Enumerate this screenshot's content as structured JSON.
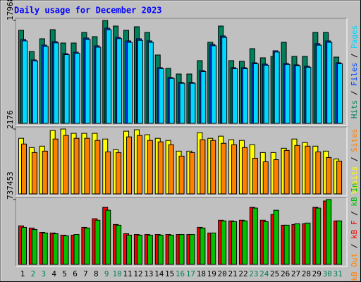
{
  "title": "Daily usage for December 2023",
  "days": [
    "1",
    "2",
    "3",
    "4",
    "5",
    "6",
    "7",
    "8",
    "9",
    "10",
    "11",
    "12",
    "13",
    "14",
    "15",
    "16",
    "17",
    "18",
    "19",
    "20",
    "21",
    "22",
    "23",
    "24",
    "25",
    "26",
    "27",
    "28",
    "29",
    "30",
    "31"
  ],
  "weekend_color": "#00805C",
  "weekday_color": "#000000",
  "weekends": [
    2,
    3,
    9,
    10,
    16,
    17,
    23,
    24,
    30,
    31
  ],
  "separator": "/",
  "chart_data": [
    {
      "type": "bar",
      "ylim": [
        0,
        17968
      ],
      "yticks": [
        17968
      ],
      "series": [
        {
          "name": "Hits",
          "color": "#00805C",
          "values": [
            16245,
            12553,
            14768,
            16368,
            14030,
            14030,
            15876,
            15138,
            17968,
            16984,
            16245,
            16861,
            15876,
            11938,
            9599,
            8615,
            8615,
            10953,
            14153,
            16984,
            10953,
            10830,
            13045,
            11446,
            11692,
            14153,
            11692,
            11692,
            15876,
            15876,
            11569
          ]
        },
        {
          "name": "Files",
          "color": "#0040FF",
          "values": [
            14645,
            11076,
            13661,
            14276,
            12184,
            12430,
            14891,
            13538,
            16614,
            15015,
            14399,
            14768,
            14399,
            9723,
            8000,
            7138,
            7138,
            9230,
            13784,
            15261,
            9723,
            9723,
            10584,
            10338,
            12676,
            10461,
            10215,
            9969,
            13907,
            14399,
            10584
          ]
        },
        {
          "name": "Pages",
          "color": "#00D8FF",
          "values": [
            14400,
            10900,
            13450,
            14050,
            12000,
            12250,
            14650,
            13300,
            16350,
            14800,
            14150,
            14500,
            14150,
            9550,
            7850,
            7000,
            7000,
            9050,
            13550,
            15000,
            9550,
            9550,
            10400,
            10150,
            12450,
            10300,
            10050,
            9800,
            13650,
            14150,
            10400
          ]
        }
      ]
    },
    {
      "type": "bar",
      "ylim": [
        0,
        2176
      ],
      "yticks": [
        2176
      ],
      "series": [
        {
          "name": "Visits",
          "color": "#FFFF00",
          "values": [
            1864,
            1554,
            1601,
            2127,
            2176,
            2032,
            2032,
            2032,
            1840,
            1482,
            2103,
            2151,
            1984,
            1864,
            1793,
            1434,
            1434,
            2055,
            1864,
            1936,
            1816,
            1793,
            1649,
            1386,
            1386,
            1530,
            1840,
            1721,
            1601,
            1434,
            1171
          ]
        },
        {
          "name": "Sites",
          "color": "#FF8000",
          "values": [
            1673,
            1386,
            1434,
            1840,
            1960,
            1864,
            1864,
            1793,
            1410,
            1386,
            1912,
            1960,
            1793,
            1745,
            1649,
            1267,
            1386,
            1816,
            1793,
            1697,
            1649,
            1554,
            1195,
            1076,
            1147,
            1458,
            1625,
            1601,
            1410,
            1219,
            1099
          ]
        }
      ]
    },
    {
      "type": "bar",
      "ylim": [
        0,
        737453
      ],
      "yticks": [
        737453
      ],
      "series": [
        {
          "name": "kB F",
          "color": "#FF0000",
          "values": [
            437616,
            413304,
            364680,
            356576,
            332264,
            332264,
            421408,
            518656,
            648320,
            453824,
            348472,
            340368,
            340368,
            340368,
            340368,
            340368,
            340368,
            421408,
            356576,
            502448,
            494344,
            502448,
            648320,
            502448,
            567280,
            445720,
            453824,
            461928,
            648320,
            721256,
            494344
          ]
        },
        {
          "name": "kB In",
          "color": "#00C000",
          "values": [
            421408,
            397096,
            356576,
            348472,
            324160,
            340368,
            413304,
            502448,
            615904,
            445720,
            332264,
            332264,
            332264,
            332264,
            332264,
            340368,
            340368,
            413304,
            356576,
            494344,
            486240,
            494344,
            640216,
            486240,
            615904,
            445720,
            461928,
            470032,
            640216,
            737453,
            494344
          ]
        }
      ],
      "legend_extra": {
        "text": "kB Out",
        "color": "#FF8000"
      }
    }
  ]
}
